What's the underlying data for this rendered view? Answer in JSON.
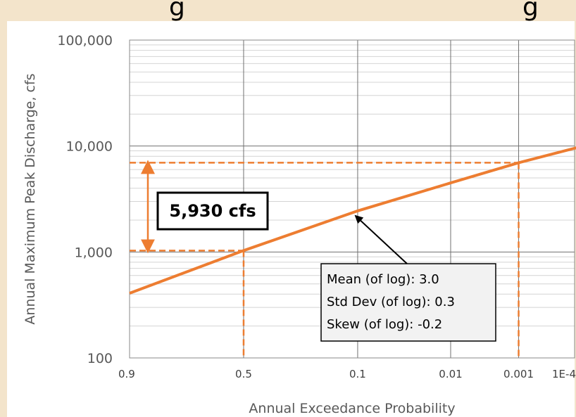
{
  "chart_data": {
    "type": "line",
    "title": "",
    "title_fragments": [
      "g",
      "g"
    ],
    "xlabel": "Annual Exceedance Probability",
    "ylabel": "Annual Maximum Peak Discharge, cfs",
    "x_scale": "normal-probability (reversed)",
    "y_scale": "log",
    "ylim": [
      100,
      100000
    ],
    "grid": true,
    "x_ticks": [
      {
        "p": 0.9,
        "label": "0.9"
      },
      {
        "p": 0.5,
        "label": "0.5"
      },
      {
        "p": 0.1,
        "label": "0.1"
      },
      {
        "p": 0.01,
        "label": "0.01"
      },
      {
        "p": 0.001,
        "label": "0.001"
      },
      {
        "p": 0.0001,
        "label": "1E-4"
      }
    ],
    "y_ticks": [
      {
        "v": 100,
        "label": "100"
      },
      {
        "v": 1000,
        "label": "1,000"
      },
      {
        "v": 10000,
        "label": "10,000"
      },
      {
        "v": 100000,
        "label": "100,000"
      }
    ],
    "series": [
      {
        "name": "",
        "color": "#ed7d31",
        "points": [
          {
            "p": 0.9,
            "y": 408
          },
          {
            "p": 0.5,
            "y": 1031
          },
          {
            "p": 0.1,
            "y": 2441
          },
          {
            "p": 0.01,
            "y": 4490
          },
          {
            "p": 0.001,
            "y": 6960
          },
          {
            "p": 8e-05,
            "y": 9800
          }
        ]
      }
    ],
    "reference_lines": {
      "color": "#ed7d31",
      "low": {
        "p": 0.5,
        "y": 1031
      },
      "high": {
        "p": 0.001,
        "y": 6960
      }
    },
    "difference_label": "5,930 cfs",
    "stats_box": {
      "lines": [
        "Mean (of log): 3.0",
        "Std Dev (of log): 0.3",
        "Skew (of log): -0.2"
      ],
      "arrow_target": {
        "p": 0.11,
        "y": 2400
      }
    }
  },
  "colors": {
    "background": "#f3e4cb",
    "plot_bg": "#ffffff",
    "major_grid": "#707070",
    "minor_grid": "#d4d4d4",
    "accent": "#ed7d31"
  }
}
